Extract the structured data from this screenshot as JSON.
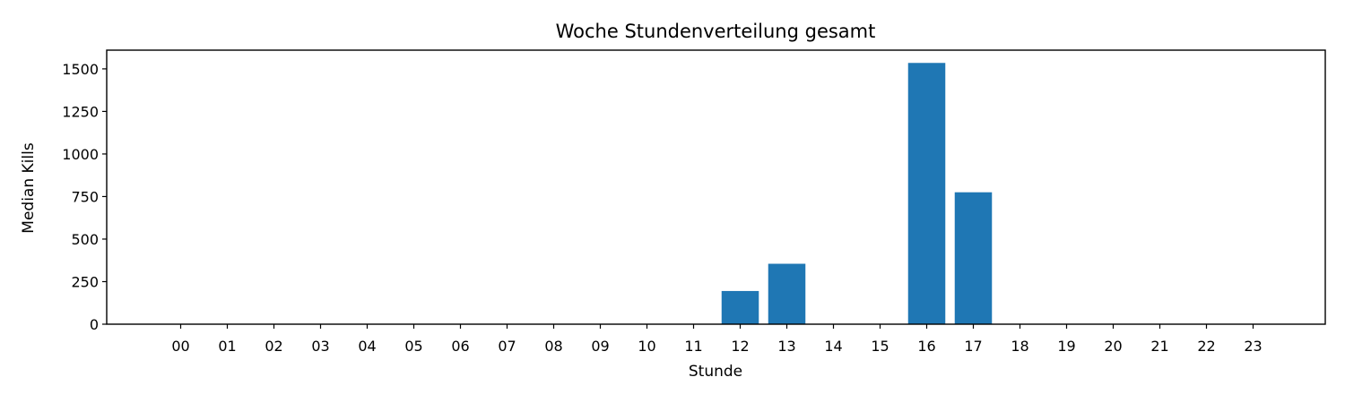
{
  "chart_data": {
    "type": "bar",
    "title": "Woche Stundenverteilung gesamt",
    "xlabel": "Stunde",
    "ylabel": "Median Kills",
    "categories": [
      "00",
      "01",
      "02",
      "03",
      "04",
      "05",
      "06",
      "07",
      "08",
      "09",
      "10",
      "11",
      "12",
      "13",
      "14",
      "15",
      "16",
      "17",
      "18",
      "19",
      "20",
      "21",
      "22",
      "23"
    ],
    "values": [
      0,
      0,
      0,
      0,
      0,
      0,
      0,
      0,
      0,
      0,
      0,
      0,
      195,
      355,
      0,
      0,
      1535,
      775,
      0,
      0,
      0,
      0,
      0,
      0
    ],
    "ylim": [
      0,
      1610
    ],
    "yticks": [
      0,
      250,
      500,
      750,
      1000,
      1250,
      1500
    ],
    "bar_color": "#1f77b4",
    "grid": false,
    "legend": false
  }
}
